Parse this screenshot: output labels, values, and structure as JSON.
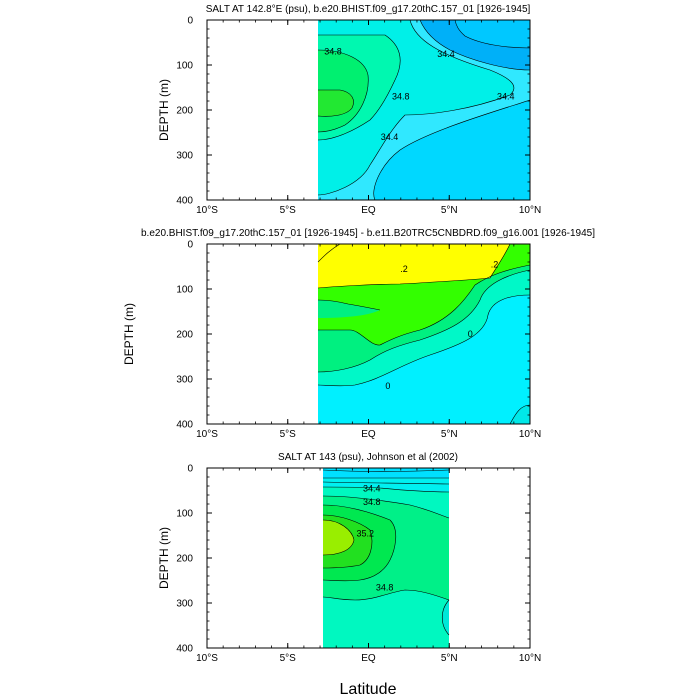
{
  "chart_data": [
    {
      "type": "contour",
      "title": "SALT AT 142.8°E (psu), b.e20.BHIST.f09_g17.20thC.157_01 [1926-1945]",
      "ylabel": "DEPTH (m)",
      "xlabel": "",
      "xlim": [
        -10,
        10
      ],
      "ylim": [
        400,
        0
      ],
      "x_ticks": [
        "10°S",
        "5°S",
        "EQ",
        "5°N",
        "10°N"
      ],
      "y_ticks": [
        "0",
        "100",
        "200",
        "300",
        "400"
      ],
      "data_extent_x": [
        -3,
        10
      ],
      "fills": [
        {
          "level": 34.0,
          "color": "#00b0f8"
        },
        {
          "level": 34.2,
          "color": "#00d8ff"
        },
        {
          "level": 34.4,
          "color": "#30e8ff"
        },
        {
          "level": 34.6,
          "color": "#00f0e8"
        },
        {
          "level": 34.8,
          "color": "#00f8b0"
        },
        {
          "level": 35.0,
          "color": "#00f070"
        },
        {
          "level": 35.2,
          "color": "#22e832"
        }
      ],
      "contour_labels": [
        {
          "text": "34.8",
          "x": -2.2,
          "y": 70
        },
        {
          "text": "34.4",
          "x": 4.8,
          "y": 75
        },
        {
          "text": "34.4",
          "x": 8.5,
          "y": 170
        },
        {
          "text": "34.8",
          "x": 2.0,
          "y": 170
        },
        {
          "text": "34.4",
          "x": 1.3,
          "y": 260
        }
      ]
    },
    {
      "type": "contour",
      "title": "b.e20.BHIST.f09_g17.20thC.157_01 [1926-1945] - b.e11.B20TRC5CNBDRD.f09_g16.001 [1926-1945]",
      "ylabel": "DEPTH (m)",
      "xlabel": "",
      "xlim": [
        -10,
        10
      ],
      "ylim": [
        400,
        0
      ],
      "x_ticks": [
        "10°S",
        "5°S",
        "EQ",
        "5°N",
        "10°N"
      ],
      "y_ticks": [
        "0",
        "100",
        "200",
        "300",
        "400"
      ],
      "data_extent_x": [
        -3,
        10
      ],
      "fills": [
        {
          "level": -0.2,
          "color": "#00f0ff"
        },
        {
          "level": 0.0,
          "color": "#00f8c8"
        },
        {
          "level": 0.1,
          "color": "#00f080"
        },
        {
          "level": 0.2,
          "color": "#33ff00"
        },
        {
          "level": 0.4,
          "color": "#ffff00"
        }
      ],
      "contour_labels": [
        {
          "text": ".2",
          "x": 2.2,
          "y": 55
        },
        {
          "text": ".2",
          "x": 7.8,
          "y": 45
        },
        {
          "text": "0",
          "x": 6.3,
          "y": 200
        },
        {
          "text": "0",
          "x": 1.2,
          "y": 315
        }
      ]
    },
    {
      "type": "contour",
      "title": "SALT AT 143 (psu), Johnson et al (2002)",
      "ylabel": "DEPTH (m)",
      "xlabel": "Latitude",
      "xlim": [
        -10,
        10
      ],
      "ylim": [
        400,
        0
      ],
      "x_ticks": [
        "10°S",
        "5°S",
        "EQ",
        "5°N",
        "10°N"
      ],
      "y_ticks": [
        "0",
        "100",
        "200",
        "300",
        "400"
      ],
      "data_extent_x": [
        -2.7,
        5
      ],
      "fills": [
        {
          "level": 34.2,
          "color": "#00e0ff"
        },
        {
          "level": 34.4,
          "color": "#00f0f0"
        },
        {
          "level": 34.6,
          "color": "#00f8c0"
        },
        {
          "level": 34.8,
          "color": "#00f088"
        },
        {
          "level": 35.0,
          "color": "#00e850"
        },
        {
          "level": 35.2,
          "color": "#22e020"
        },
        {
          "level": 35.4,
          "color": "#99ee00"
        }
      ],
      "contour_labels": [
        {
          "text": "34.4",
          "x": 0.2,
          "y": 45
        },
        {
          "text": "34.8",
          "x": 0.2,
          "y": 75
        },
        {
          "text": "35.2",
          "x": -0.2,
          "y": 145
        },
        {
          "text": "34.8",
          "x": 1.0,
          "y": 265
        }
      ]
    }
  ]
}
